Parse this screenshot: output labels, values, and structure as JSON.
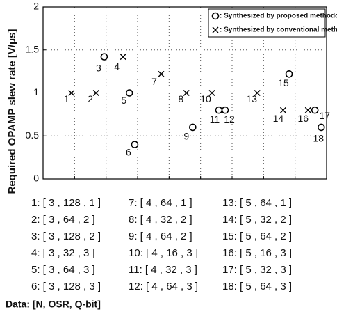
{
  "chart_data": {
    "type": "scatter",
    "ylabel": "Required OPAMP slew rate [V/μs]",
    "xlim": [
      0,
      9
    ],
    "xticks": [
      1,
      2,
      3,
      4,
      5,
      6,
      7,
      8
    ],
    "ylim": [
      0,
      2
    ],
    "yticks": [
      0,
      0.5,
      1,
      1.5,
      2
    ],
    "grid": true,
    "legend": "upper right",
    "series": [
      {
        "name": ": Synthesized by proposed methodology",
        "marker": "circle",
        "color": "#000000",
        "x": [
          1.94,
          2.74,
          2.91,
          4.75,
          5.58,
          5.78,
          7.81,
          8.63,
          8.83
        ],
        "values": [
          1.42,
          1.0,
          0.4,
          0.6,
          0.8,
          0.8,
          1.22,
          0.8,
          0.6
        ],
        "labels": [
          "3",
          "5",
          "6",
          "9",
          "11",
          "12",
          "15",
          "17",
          "18"
        ]
      },
      {
        "name": ": Synthesized by conventional methodology",
        "marker": "x",
        "color": "#000000",
        "x": [
          0.9,
          1.68,
          2.54,
          3.75,
          4.55,
          5.36,
          6.8,
          7.62,
          8.41
        ],
        "values": [
          1.0,
          1.0,
          1.42,
          1.22,
          1.0,
          1.0,
          1.0,
          0.8,
          0.8
        ],
        "labels": [
          "1",
          "2",
          "4",
          "7",
          "8",
          "10",
          "13",
          "14",
          "16"
        ]
      }
    ]
  },
  "table": {
    "rows": [
      [
        "1: [ 3 , 128 , 1 ]",
        "7: [ 4 , 64 , 1 ]",
        "13: [ 5 , 64 , 1 ]"
      ],
      [
        "2: [ 3 , 64 , 2 ]",
        "8: [ 4 , 32 , 2 ]",
        "14: [ 5 , 32 , 2 ]"
      ],
      [
        "3: [ 3 , 128 , 2 ]",
        "9: [ 4 , 64 , 2 ]",
        "15: [ 5 , 64 , 2 ]"
      ],
      [
        "4: [ 3 , 32 , 3 ]",
        "10: [ 4 , 16 , 3 ]",
        "16: [ 5 , 16 , 3 ]"
      ],
      [
        "5: [ 3 , 64 , 3 ]",
        "11: [ 4 , 32 , 3 ]",
        "17: [ 5 , 32 , 3 ]"
      ],
      [
        "6: [ 3 , 128 , 3 ]",
        "12: [ 4 , 64 , 3 ]",
        "18: [ 5 , 64 , 3 ]"
      ]
    ]
  },
  "note": "Data: [N, OSR, Q-bit]"
}
